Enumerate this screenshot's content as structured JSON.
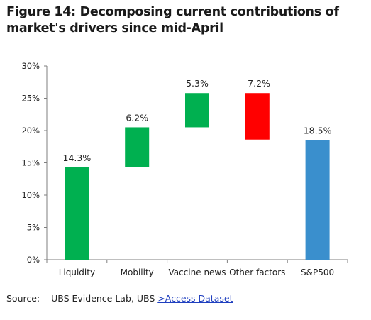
{
  "title": "Figure 14: Decomposing current contributions of market's drivers since mid-April",
  "chart_data": {
    "type": "bar",
    "subtype": "waterfall",
    "categories": [
      "Liquidity",
      "Mobility",
      "Vaccine news",
      "Other factors",
      "S&P500"
    ],
    "series": [
      {
        "values": [
          14.3,
          6.2,
          5.3,
          -7.2,
          18.5
        ],
        "bar_bottoms": [
          0,
          14.3,
          20.5,
          18.6,
          0
        ],
        "bar_tops": [
          14.3,
          20.5,
          25.8,
          25.8,
          18.5
        ],
        "data_labels": [
          "14.3%",
          "6.2%",
          "5.3%",
          "-7.2%",
          "18.5%"
        ],
        "colors": [
          "#00b050",
          "#00b050",
          "#00b050",
          "#ff0000",
          "#3a8fcd"
        ]
      }
    ],
    "y_ticks": [
      "0%",
      "5%",
      "10%",
      "15%",
      "20%",
      "25%",
      "30%"
    ],
    "ylim": [
      0,
      30
    ],
    "grid": false,
    "legend": "none"
  },
  "source": {
    "prefix": "Source:",
    "text": "UBS Evidence Lab, UBS",
    "link": ">Access Dataset"
  }
}
